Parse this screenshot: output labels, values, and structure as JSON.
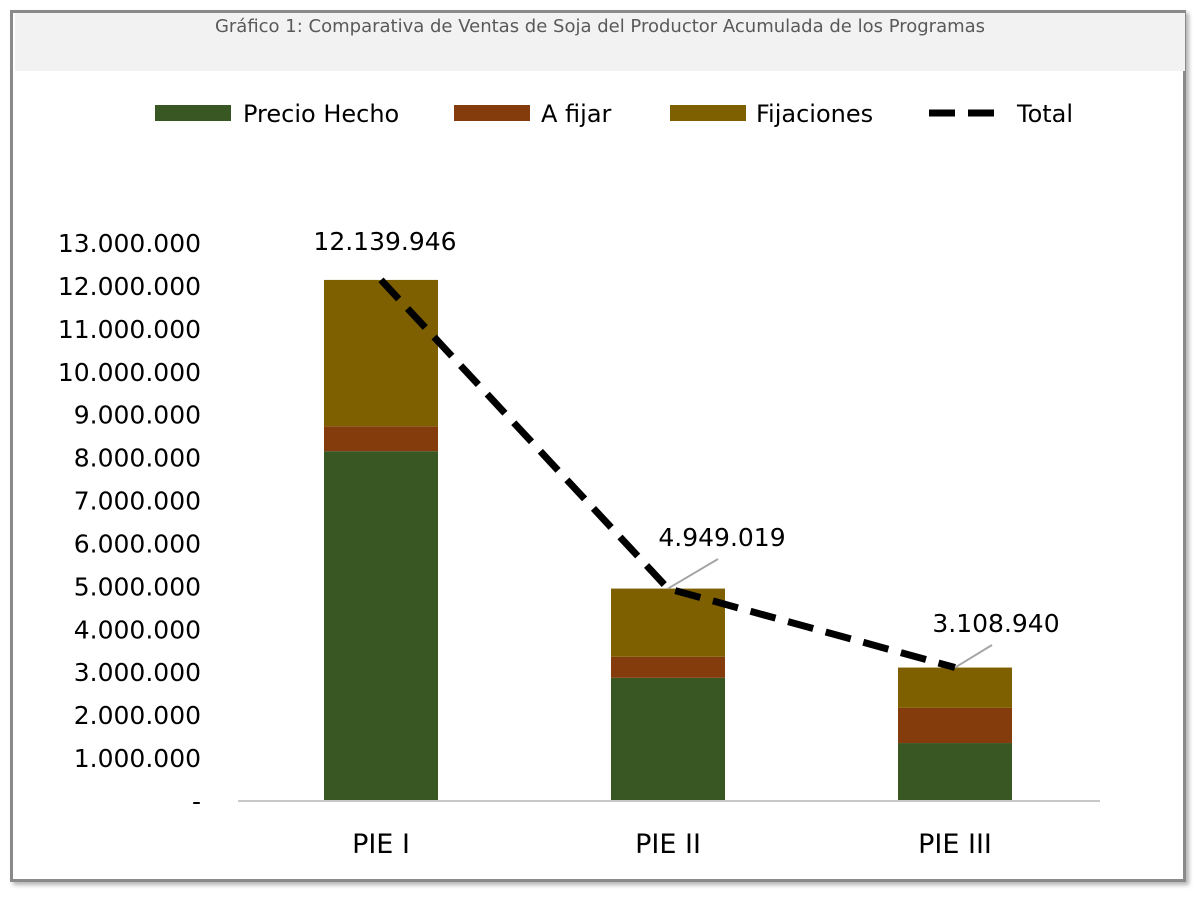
{
  "chart_data": {
    "type": "bar",
    "stacked": true,
    "title": "Gráfico 1: Comparativa de Ventas de Soja del Productor Acumulada de los Programas",
    "categories": [
      "PIE I",
      "PIE II",
      "PIE III"
    ],
    "series": [
      {
        "name": "Precio Hecho",
        "kind": "bar",
        "color": "#385723",
        "values": [
          8150000,
          2870000,
          1350000
        ]
      },
      {
        "name": "A fijar",
        "kind": "bar",
        "color": "#843c0c",
        "values": [
          580000,
          490000,
          820000
        ]
      },
      {
        "name": "Fijaciones",
        "kind": "bar",
        "color": "#7f6000",
        "values": [
          3409946,
          1589019,
          938940
        ]
      },
      {
        "name": "Total",
        "kind": "line",
        "style": "dashed",
        "color": "#000000",
        "values": [
          12139946,
          4949019,
          3108940
        ]
      }
    ],
    "total_labels": [
      "12.139.946",
      "4.949.019",
      "3.108.940"
    ],
    "y_ticks": [
      {
        "value": 0,
        "label": "-"
      },
      {
        "value": 1000000,
        "label": "1.000.000"
      },
      {
        "value": 2000000,
        "label": "2.000.000"
      },
      {
        "value": 3000000,
        "label": "3.000.000"
      },
      {
        "value": 4000000,
        "label": "4.000.000"
      },
      {
        "value": 5000000,
        "label": "5.000.000"
      },
      {
        "value": 6000000,
        "label": "6.000.000"
      },
      {
        "value": 7000000,
        "label": "7.000.000"
      },
      {
        "value": 8000000,
        "label": "8.000.000"
      },
      {
        "value": 9000000,
        "label": "9.000.000"
      },
      {
        "value": 10000000,
        "label": "10.000.000"
      },
      {
        "value": 11000000,
        "label": "11.000.000"
      },
      {
        "value": 12000000,
        "label": "12.000.000"
      },
      {
        "value": 13000000,
        "label": "13.000.000"
      }
    ],
    "ylim": [
      0,
      13000000
    ],
    "legend_position": "top",
    "grid": false,
    "xlabel": "",
    "ylabel": ""
  }
}
